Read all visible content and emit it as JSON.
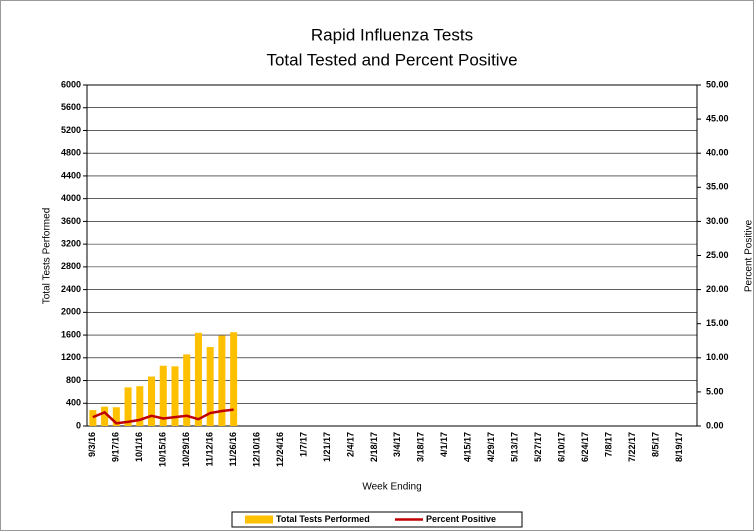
{
  "chart_data": {
    "type": "bar_line",
    "title": "Rapid Influenza Tests",
    "subtitle": "Total Tested and Percent Positive",
    "x_label": "Week Ending",
    "y_label": "Total Tests Performed",
    "y2_label": "Percent Positive",
    "categories": [
      "9/3/16",
      null,
      "9/17/16",
      null,
      "10/1/16",
      null,
      "10/15/16",
      null,
      "10/29/16",
      null,
      "11/12/16",
      null,
      "11/26/16",
      null,
      "12/10/16",
      null,
      "12/24/16",
      null,
      "1/7/17",
      null,
      "1/21/17",
      null,
      "2/4/17",
      null,
      "2/18/17",
      null,
      "3/4/17",
      null,
      "3/18/17",
      null,
      "4/1/17",
      null,
      "4/15/17",
      null,
      "4/29/17",
      null,
      "5/13/17",
      null,
      "5/27/17",
      null,
      "6/10/17",
      null,
      "6/24/17",
      null,
      "7/8/17",
      null,
      "7/22/17",
      null,
      "8/5/17",
      null,
      "8/19/17",
      null
    ],
    "series": [
      {
        "name": "Total Tests Performed",
        "color": "#ffc000",
        "values": [
          280,
          340,
          330,
          680,
          700,
          870,
          1060,
          1050,
          1260,
          1640,
          1390,
          1590,
          1650,
          null,
          null,
          null,
          null,
          null,
          null,
          null,
          null,
          null,
          null,
          null,
          null,
          null,
          null,
          null,
          null,
          null,
          null,
          null,
          null,
          null,
          null,
          null,
          null,
          null,
          null,
          null,
          null,
          null,
          null,
          null,
          null,
          null,
          null,
          null,
          null,
          null,
          null,
          null
        ]
      },
      {
        "name": "Percent Positive",
        "color": "#c00000",
        "axis": "y2",
        "values": [
          1.3,
          2.0,
          0.4,
          0.6,
          0.9,
          1.5,
          1.1,
          1.3,
          1.5,
          1.0,
          1.9,
          2.2,
          2.4,
          null,
          null,
          null,
          null,
          null,
          null,
          null,
          null,
          null,
          null,
          null,
          null,
          null,
          null,
          null,
          null,
          null,
          null,
          null,
          null,
          null,
          null,
          null,
          null,
          null,
          null,
          null,
          null,
          null,
          null,
          null,
          null,
          null,
          null,
          null,
          null,
          null,
          null,
          null
        ]
      }
    ],
    "ylim": [
      0,
      6000
    ],
    "yticks": [
      0,
      400,
      800,
      1200,
      1600,
      2000,
      2400,
      2800,
      3200,
      3600,
      4000,
      4400,
      4800,
      5200,
      5600,
      6000
    ],
    "y2lim": [
      0,
      50
    ],
    "y2ticks": [
      {
        "value": 0,
        "label": "0.00"
      },
      {
        "value": 5,
        "label": "5.00"
      },
      {
        "value": 10,
        "label": "10.00"
      },
      {
        "value": 15,
        "label": "15.00"
      },
      {
        "value": 20,
        "label": "20.00"
      },
      {
        "value": 25,
        "label": "25.00"
      },
      {
        "value": 30,
        "label": "30.00"
      },
      {
        "value": 35,
        "label": "35.00"
      },
      {
        "value": 40,
        "label": "40.00"
      },
      {
        "value": 45,
        "label": "45.00"
      },
      {
        "value": 50,
        "label": "50.00"
      }
    ],
    "grid": true,
    "legend": "bottom"
  }
}
